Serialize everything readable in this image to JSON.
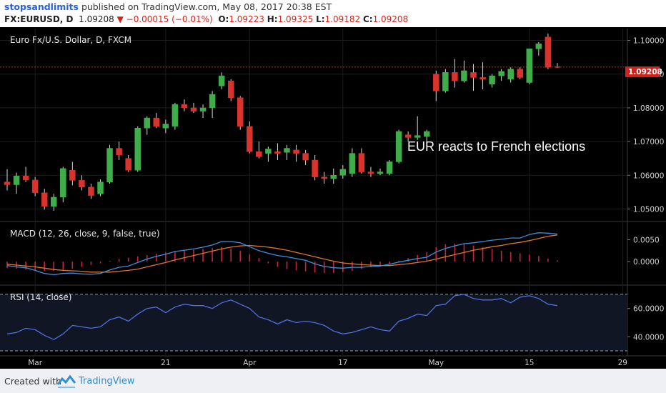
{
  "header": {
    "author": "stopsandlimits",
    "published": "published on TradingView.com, May 08, 2017 20:38 EST",
    "symbol": "FX:EURUSD, D",
    "last": "1.09208",
    "change": "−0.00015 (−0.01%)",
    "o_label": "O:",
    "o": "1.09223",
    "h_label": "H:",
    "h": "1.09325",
    "l_label": "L:",
    "l": "1.09182",
    "c_label": "C:",
    "c": "1.09208"
  },
  "footer": {
    "created": "Created with",
    "brand": "TradingView"
  },
  "colors": {
    "background": "#000000",
    "up": "#3fae4a",
    "down": "#d8332c",
    "macd": "#3d8fe0",
    "signal": "#e0752d",
    "rsi": "#4f6fe0",
    "axis_text": "#cfcfcf",
    "price_tag": "#d6221c"
  },
  "chart_data": [
    {
      "type": "candlestick",
      "title": "Euro Fx/U.S. Dollar, D, FXCM",
      "annotation": "EUR reacts to French elections",
      "last_price_label": "1.09208",
      "ylim": [
        1.0465,
        1.1035
      ],
      "yticks": [
        "1.10000",
        "1.09000",
        "1.08000",
        "1.07000",
        "1.06000",
        "1.05000"
      ],
      "xticks": [
        {
          "label": "Mar",
          "bar": 3
        },
        {
          "label": "21",
          "bar": 17
        },
        {
          "label": "Apr",
          "bar": 26
        },
        {
          "label": "17",
          "bar": 36
        },
        {
          "label": "May",
          "bar": 46
        },
        {
          "label": "15",
          "bar": 56
        },
        {
          "label": "29",
          "bar": 66
        }
      ],
      "bars": [
        {
          "o": 1.058,
          "h": 1.0618,
          "l": 1.0555,
          "c": 1.0572
        },
        {
          "o": 1.0572,
          "h": 1.0608,
          "l": 1.0545,
          "c": 1.0598
        },
        {
          "o": 1.0598,
          "h": 1.0625,
          "l": 1.058,
          "c": 1.0586
        },
        {
          "o": 1.0586,
          "h": 1.0595,
          "l": 1.0538,
          "c": 1.0548
        },
        {
          "o": 1.0548,
          "h": 1.056,
          "l": 1.0498,
          "c": 1.0508
        },
        {
          "o": 1.0508,
          "h": 1.0545,
          "l": 1.0495,
          "c": 1.0535
        },
        {
          "o": 1.0535,
          "h": 1.0625,
          "l": 1.052,
          "c": 1.062
        },
        {
          "o": 1.0615,
          "h": 1.064,
          "l": 1.057,
          "c": 1.0585
        },
        {
          "o": 1.0585,
          "h": 1.06,
          "l": 1.0555,
          "c": 1.0565
        },
        {
          "o": 1.0565,
          "h": 1.0575,
          "l": 1.053,
          "c": 1.054
        },
        {
          "o": 1.0545,
          "h": 1.0588,
          "l": 1.0538,
          "c": 1.058
        },
        {
          "o": 1.058,
          "h": 1.069,
          "l": 1.0575,
          "c": 1.068
        },
        {
          "o": 1.068,
          "h": 1.07,
          "l": 1.0645,
          "c": 1.066
        },
        {
          "o": 1.065,
          "h": 1.066,
          "l": 1.061,
          "c": 1.0615
        },
        {
          "o": 1.0615,
          "h": 1.0745,
          "l": 1.061,
          "c": 1.074
        },
        {
          "o": 1.074,
          "h": 1.0775,
          "l": 1.072,
          "c": 1.077
        },
        {
          "o": 1.077,
          "h": 1.0785,
          "l": 1.074,
          "c": 1.0745
        },
        {
          "o": 1.074,
          "h": 1.0765,
          "l": 1.0725,
          "c": 1.0752
        },
        {
          "o": 1.0745,
          "h": 1.0815,
          "l": 1.0735,
          "c": 1.081
        },
        {
          "o": 1.081,
          "h": 1.0825,
          "l": 1.079,
          "c": 1.08
        },
        {
          "o": 1.08,
          "h": 1.0815,
          "l": 1.0785,
          "c": 1.079
        },
        {
          "o": 1.079,
          "h": 1.081,
          "l": 1.077,
          "c": 1.08
        },
        {
          "o": 1.08,
          "h": 1.085,
          "l": 1.077,
          "c": 1.084
        },
        {
          "o": 1.0865,
          "h": 1.0905,
          "l": 1.0855,
          "c": 1.0895
        },
        {
          "o": 1.088,
          "h": 1.0885,
          "l": 1.082,
          "c": 1.083
        },
        {
          "o": 1.083,
          "h": 1.0835,
          "l": 1.0735,
          "c": 1.0745
        },
        {
          "o": 1.0745,
          "h": 1.076,
          "l": 1.0665,
          "c": 1.067
        },
        {
          "o": 1.067,
          "h": 1.07,
          "l": 1.065,
          "c": 1.0655
        },
        {
          "o": 1.0665,
          "h": 1.0685,
          "l": 1.064,
          "c": 1.0678
        },
        {
          "o": 1.067,
          "h": 1.0695,
          "l": 1.0645,
          "c": 1.0665
        },
        {
          "o": 1.0668,
          "h": 1.069,
          "l": 1.0645,
          "c": 1.068
        },
        {
          "o": 1.0675,
          "h": 1.069,
          "l": 1.064,
          "c": 1.0665
        },
        {
          "o": 1.0665,
          "h": 1.0675,
          "l": 1.063,
          "c": 1.0645
        },
        {
          "o": 1.0645,
          "h": 1.066,
          "l": 1.0585,
          "c": 1.0595
        },
        {
          "o": 1.0595,
          "h": 1.061,
          "l": 1.0575,
          "c": 1.059
        },
        {
          "o": 1.059,
          "h": 1.062,
          "l": 1.0575,
          "c": 1.06
        },
        {
          "o": 1.06,
          "h": 1.063,
          "l": 1.059,
          "c": 1.0618
        },
        {
          "o": 1.0605,
          "h": 1.068,
          "l": 1.0595,
          "c": 1.0665
        },
        {
          "o": 1.0665,
          "h": 1.068,
          "l": 1.0605,
          "c": 1.061
        },
        {
          "o": 1.061,
          "h": 1.0625,
          "l": 1.0595,
          "c": 1.0605
        },
        {
          "o": 1.0605,
          "h": 1.062,
          "l": 1.06,
          "c": 1.061
        },
        {
          "o": 1.0605,
          "h": 1.0645,
          "l": 1.06,
          "c": 1.064
        },
        {
          "o": 1.064,
          "h": 1.0735,
          "l": 1.0635,
          "c": 1.073
        },
        {
          "o": 1.072,
          "h": 1.073,
          "l": 1.07,
          "c": 1.0712
        },
        {
          "o": 1.0712,
          "h": 1.0775,
          "l": 1.0705,
          "c": 1.0718
        },
        {
          "o": 1.0715,
          "h": 1.0735,
          "l": 1.068,
          "c": 1.073
        },
        {
          "o": 1.09,
          "h": 1.091,
          "l": 1.082,
          "c": 1.085
        },
        {
          "o": 1.085,
          "h": 1.0915,
          "l": 1.0845,
          "c": 1.0905
        },
        {
          "o": 1.0905,
          "h": 1.0945,
          "l": 1.086,
          "c": 1.088
        },
        {
          "o": 1.088,
          "h": 1.094,
          "l": 1.0875,
          "c": 1.091
        },
        {
          "o": 1.0905,
          "h": 1.093,
          "l": 1.085,
          "c": 1.089
        },
        {
          "o": 1.089,
          "h": 1.0935,
          "l": 1.0855,
          "c": 1.0885
        },
        {
          "o": 1.087,
          "h": 1.09,
          "l": 1.086,
          "c": 1.0895
        },
        {
          "o": 1.0895,
          "h": 1.0915,
          "l": 1.088,
          "c": 1.0908
        },
        {
          "o": 1.0885,
          "h": 1.092,
          "l": 1.0875,
          "c": 1.0915
        },
        {
          "o": 1.0915,
          "h": 1.092,
          "l": 1.0885,
          "c": 1.089
        },
        {
          "o": 1.0875,
          "h": 1.0975,
          "l": 1.087,
          "c": 1.0975
        },
        {
          "o": 1.0975,
          "h": 1.0995,
          "l": 1.0955,
          "c": 1.099
        },
        {
          "o": 1.101,
          "h": 1.102,
          "l": 1.0915,
          "c": 1.092
        },
        {
          "o": 1.0922,
          "h": 1.0933,
          "l": 1.0918,
          "c": 1.0921
        }
      ]
    },
    {
      "type": "line",
      "title": "MACD (12, 26, close, 9, false, true)",
      "ylim": [
        -0.0052,
        0.009
      ],
      "yticks": [
        "0.0050",
        "0.0000"
      ],
      "series": [
        {
          "name": "MACD",
          "values": [
            -0.0009,
            -0.0012,
            -0.0014,
            -0.002,
            -0.0027,
            -0.003,
            -0.0027,
            -0.0026,
            -0.0028,
            -0.0029,
            -0.0027,
            -0.0019,
            -0.0013,
            -0.001,
            -0.0002,
            0.0006,
            0.0012,
            0.0017,
            0.0023,
            0.0026,
            0.0029,
            0.0033,
            0.0038,
            0.0046,
            0.0046,
            0.0043,
            0.0034,
            0.0025,
            0.0019,
            0.0014,
            0.0011,
            0.0007,
            0.0003,
            -0.0005,
            -0.0011,
            -0.0014,
            -0.0015,
            -0.0013,
            -0.0013,
            -0.0011,
            -0.001,
            -0.0006,
            -0.0001,
            0.0003,
            0.0007,
            0.001,
            0.0022,
            0.003,
            0.0036,
            0.0041,
            0.0043,
            0.0046,
            0.0049,
            0.0051,
            0.0054,
            0.0054,
            0.0062,
            0.0066,
            0.0065,
            0.0063
          ]
        },
        {
          "name": "Signal",
          "values": [
            -0.0006,
            -0.0008,
            -0.001,
            -0.0012,
            -0.0015,
            -0.0018,
            -0.002,
            -0.0021,
            -0.0022,
            -0.0024,
            -0.0024,
            -0.0024,
            -0.0022,
            -0.002,
            -0.0017,
            -0.0012,
            -0.0007,
            -0.0002,
            0.0004,
            0.0009,
            0.0014,
            0.0019,
            0.0024,
            0.0029,
            0.0033,
            0.0036,
            0.0037,
            0.0035,
            0.0033,
            0.003,
            0.0026,
            0.0021,
            0.0016,
            0.0011,
            0.0006,
            0.0001,
            -0.0003,
            -0.0005,
            -0.0007,
            -0.0008,
            -0.0009,
            -0.0009,
            -0.0007,
            -0.0005,
            -0.0002,
            0.0001,
            0.0006,
            0.0011,
            0.0016,
            0.0021,
            0.0026,
            0.003,
            0.0034,
            0.0037,
            0.0041,
            0.0044,
            0.0048,
            0.0053,
            0.0058,
            0.0061
          ]
        },
        {
          "name": "Histogram",
          "values": [
            -0.0015,
            -0.0016,
            -0.0018,
            -0.002,
            -0.0021,
            -0.0021,
            -0.0019,
            -0.0016,
            -0.0012,
            -0.0008,
            -0.0004,
            0.0002,
            0.0006,
            0.0009,
            0.0012,
            0.0015,
            0.0018,
            0.0021,
            0.0024,
            0.0025,
            0.0027,
            0.0029,
            0.0031,
            0.0033,
            0.003,
            0.0025,
            0.0017,
            0.0008,
            -0.0004,
            -0.0012,
            -0.0017,
            -0.002,
            -0.0022,
            -0.0025,
            -0.0026,
            -0.0026,
            -0.0024,
            -0.0021,
            -0.0017,
            -0.0013,
            -0.0009,
            -0.0005,
            0.0002,
            0.0008,
            0.0015,
            0.0022,
            0.0033,
            0.004,
            0.0041,
            0.004,
            0.0037,
            0.0033,
            0.0029,
            0.0025,
            0.0022,
            0.0019,
            0.0016,
            0.0013,
            0.0007,
            0.0003
          ]
        }
      ]
    },
    {
      "type": "line",
      "title": "RSI (14, close)",
      "ylim": [
        27,
        76
      ],
      "yticks": [
        "60.0000",
        "40.0000"
      ],
      "bands": [
        30,
        70
      ],
      "series": [
        {
          "name": "RSI",
          "values": [
            42,
            43,
            46,
            45,
            41,
            38,
            42,
            48,
            47,
            46,
            47,
            52,
            54,
            51,
            56,
            60,
            61,
            57,
            61,
            63,
            62,
            62,
            60,
            64,
            66,
            63,
            60,
            54,
            52,
            49,
            52,
            50,
            51,
            50,
            48,
            44,
            42,
            43,
            45,
            47,
            45,
            44,
            51,
            53,
            56,
            55,
            62,
            63,
            69,
            70,
            67,
            66,
            66,
            67,
            64,
            68,
            69,
            67,
            63,
            62
          ]
        }
      ]
    }
  ]
}
